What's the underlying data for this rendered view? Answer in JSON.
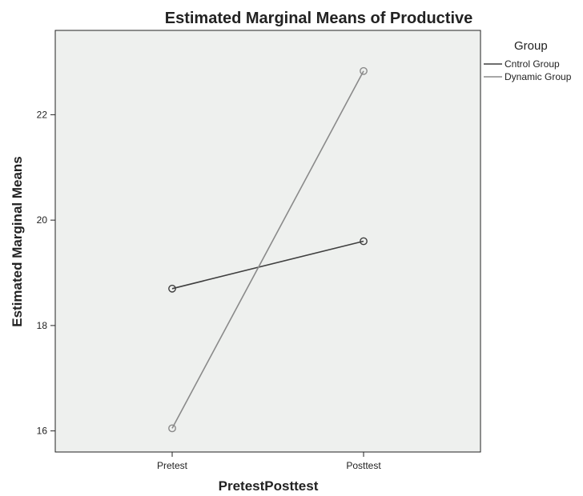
{
  "chart_data": {
    "type": "line",
    "title": "Estimated Marginal Means of Productive",
    "xlabel": "PretestPosttest",
    "ylabel": "Estimated Marginal Means",
    "categories": [
      "Pretest",
      "Posttest"
    ],
    "ylim": [
      15.6,
      23.6
    ],
    "yticks": [
      16,
      18,
      20,
      22
    ],
    "grid": false,
    "legend_title": "Group",
    "legend_position": "right",
    "series": [
      {
        "name": "Cntrol Group",
        "values": [
          18.7,
          19.6
        ],
        "color": "#3f3f3f"
      },
      {
        "name": "Dynamic Group",
        "values": [
          16.05,
          22.83
        ],
        "color": "#8a8a8a"
      }
    ],
    "plot_background": "#eef0ee"
  }
}
